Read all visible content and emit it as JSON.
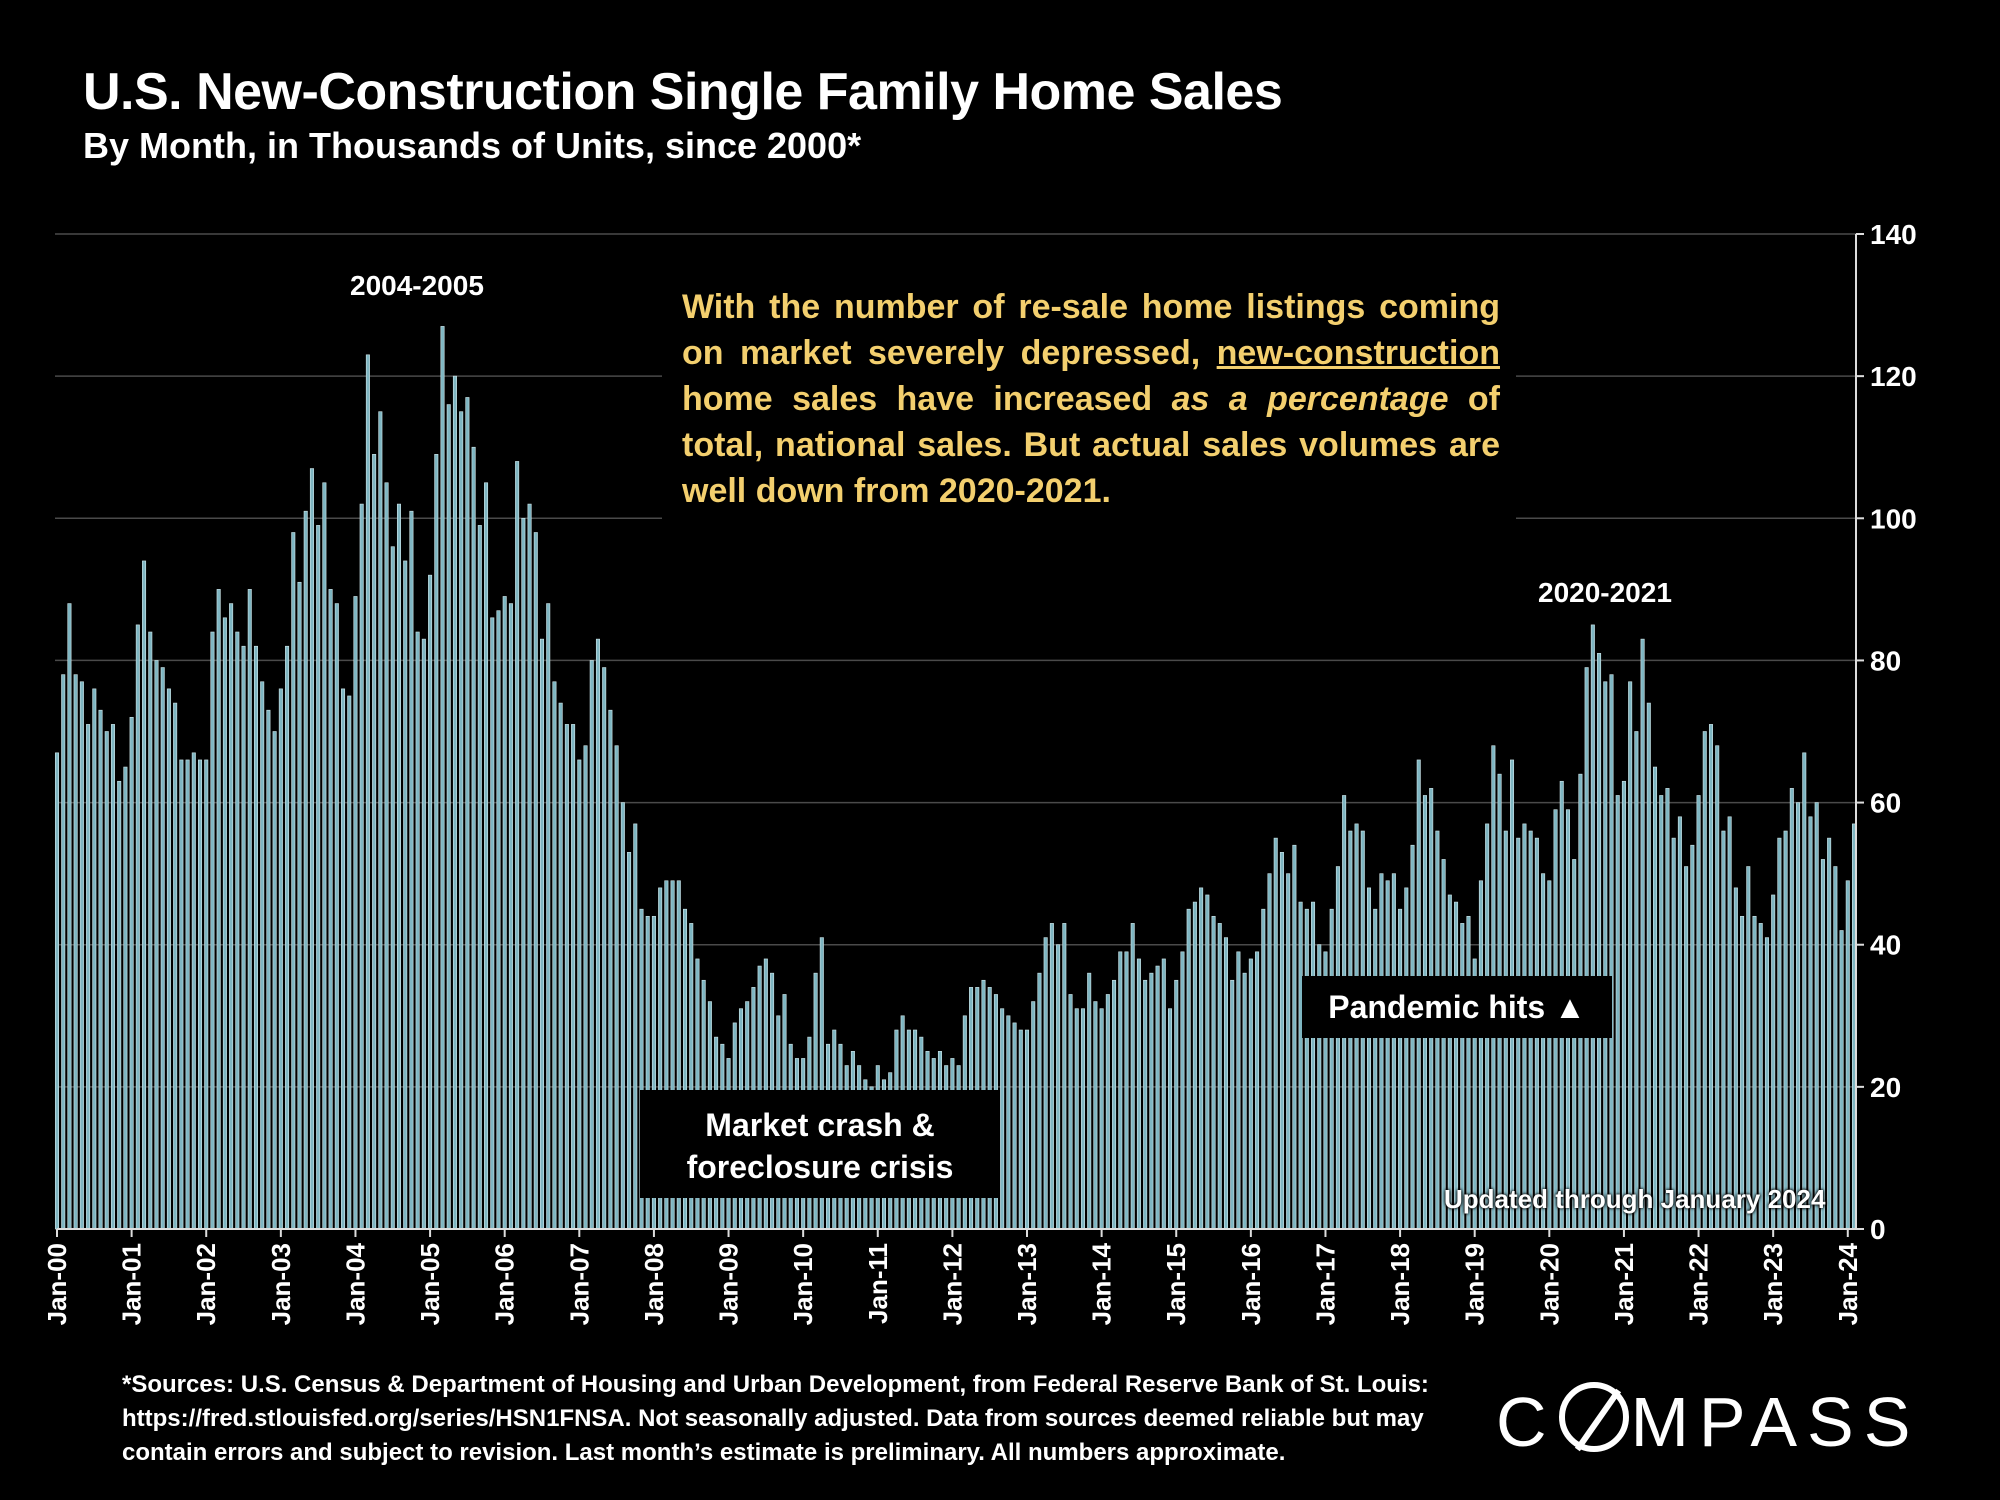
{
  "header": {
    "title": "U.S. New-Construction Single Family Home Sales",
    "subtitle": "By Month, in Thousands of Units, since 2000*"
  },
  "annotations": {
    "peak1": "2004-2005",
    "peak2": "2020-2021",
    "callout_part1": "With the number of re-sale home listings coming on market severely depressed,",
    "callout_underline": "new-construction",
    "callout_part2": "home sales have increased",
    "callout_italic": "as a percentage",
    "callout_part3": "of total, national sales. But actual sales volumes are well down from 2020-2021.",
    "crash_line1": "Market crash &",
    "crash_line2": "foreclosure crisis",
    "pandemic": "Pandemic hits ▲",
    "updated": "Updated through January 2024"
  },
  "footer": {
    "sources": "*Sources: U.S. Census & Department of Housing and Urban Development, from Federal Reserve Bank of St. Louis: https://fred.stlouisfed.org/series/HSN1FNSA. Not seasonally adjusted. Data from sources deemed reliable but may contain errors and subject to revision. Last month’s estimate is preliminary. All numbers approximate.",
    "logo_text": "COMPASS"
  },
  "colors": {
    "bar": "#7fb6c2",
    "bar_stroke": "#cfe6ea",
    "grid": "#4a4a4a",
    "callout_text": "#f3cf6e"
  },
  "chart_data": {
    "type": "bar",
    "title": "U.S. New-Construction Single Family Home Sales",
    "subtitle": "By Month, in Thousands of Units, since 2000*",
    "ylim": [
      0,
      140
    ],
    "y_ticks": [
      0,
      20,
      40,
      60,
      80,
      100,
      120,
      140
    ],
    "y_axis_side": "right",
    "grid": true,
    "x_tick_labels": [
      "Jan-00",
      "Jan-01",
      "Jan-02",
      "Jan-03",
      "Jan-04",
      "Jan-05",
      "Jan-06",
      "Jan-07",
      "Jan-08",
      "Jan-09",
      "Jan-10",
      "Jan-11",
      "Jan-12",
      "Jan-13",
      "Jan-14",
      "Jan-15",
      "Jan-16",
      "Jan-17",
      "Jan-18",
      "Jan-19",
      "Jan-20",
      "Jan-21",
      "Jan-22",
      "Jan-23",
      "Jan-24"
    ],
    "start_month": "Jan-00",
    "end_month": "Jan-24",
    "values": [
      67,
      78,
      88,
      78,
      77,
      71,
      76,
      73,
      70,
      71,
      63,
      65,
      72,
      85,
      94,
      84,
      80,
      79,
      76,
      74,
      66,
      66,
      67,
      66,
      66,
      84,
      90,
      86,
      88,
      84,
      82,
      90,
      82,
      77,
      73,
      70,
      76,
      82,
      98,
      91,
      101,
      107,
      99,
      105,
      90,
      88,
      76,
      75,
      89,
      102,
      123,
      109,
      115,
      105,
      96,
      102,
      94,
      101,
      84,
      83,
      92,
      109,
      127,
      116,
      120,
      115,
      117,
      110,
      99,
      105,
      86,
      87,
      89,
      88,
      108,
      100,
      102,
      98,
      83,
      88,
      77,
      74,
      71,
      71,
      66,
      68,
      80,
      83,
      79,
      73,
      68,
      60,
      53,
      57,
      45,
      44,
      44,
      48,
      49,
      49,
      49,
      45,
      43,
      38,
      35,
      32,
      27,
      26,
      24,
      29,
      31,
      32,
      34,
      37,
      38,
      36,
      30,
      33,
      26,
      24,
      24,
      27,
      36,
      41,
      26,
      28,
      26,
      23,
      25,
      23,
      21,
      20,
      23,
      21,
      22,
      28,
      30,
      28,
      28,
      27,
      25,
      24,
      25,
      23,
      24,
      23,
      30,
      34,
      34,
      35,
      34,
      33,
      31,
      30,
      29,
      28,
      28,
      32,
      36,
      41,
      43,
      40,
      43,
      33,
      31,
      31,
      36,
      32,
      31,
      33,
      35,
      39,
      39,
      43,
      38,
      35,
      36,
      37,
      38,
      31,
      35,
      39,
      45,
      46,
      48,
      47,
      44,
      43,
      41,
      35,
      39,
      36,
      38,
      39,
      45,
      50,
      55,
      53,
      50,
      54,
      46,
      45,
      46,
      40,
      39,
      45,
      51,
      61,
      56,
      57,
      56,
      48,
      45,
      50,
      49,
      50,
      45,
      48,
      54,
      66,
      61,
      62,
      56,
      52,
      47,
      46,
      43,
      44,
      38,
      49,
      57,
      68,
      64,
      56,
      66,
      55,
      57,
      56,
      55,
      50,
      49,
      59,
      63,
      59,
      52,
      64,
      79,
      85,
      81,
      77,
      78,
      61,
      63,
      77,
      70,
      83,
      74,
      65,
      61,
      62,
      55,
      58,
      51,
      54,
      61,
      70,
      71,
      68,
      56,
      58,
      48,
      44,
      51,
      44,
      43,
      41,
      47,
      55,
      56,
      62,
      60,
      67,
      58,
      60,
      52,
      55,
      51,
      42,
      49,
      57
    ]
  }
}
